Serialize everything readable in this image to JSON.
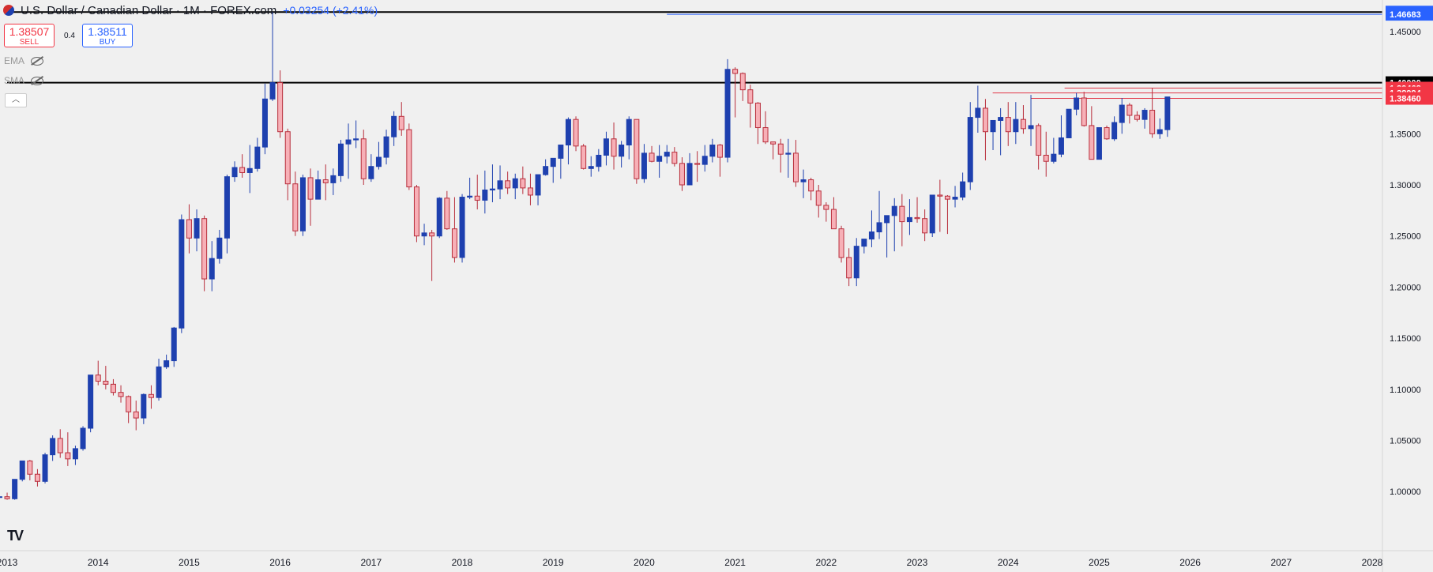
{
  "header": {
    "title": "U.S. Dollar / Canadian Dollar · 1M · FOREX.com",
    "change": "+0.03254 (+2.41%)"
  },
  "trade": {
    "sell_price": "1.38507",
    "sell_label": "SELL",
    "spread": "0.4",
    "buy_price": "1.38511",
    "buy_label": "BUY"
  },
  "indicators": [
    "EMA",
    "SMA"
  ],
  "colors": {
    "bull": "#1e40af",
    "bear_fill": "#f7b0b7",
    "bear_border": "#b82e3c",
    "red_line": "#e23a4a",
    "blue_line": "#3b68d8"
  },
  "chart_data": {
    "type": "candlestick",
    "ylim": [
      0.977,
      1.47
    ],
    "y_ticks": [
      "1.00000",
      "1.05000",
      "1.10000",
      "1.15000",
      "1.20000",
      "1.25000",
      "1.30000",
      "1.35000",
      "1.40000",
      "1.45000",
      "1.47000"
    ],
    "x_ticks": [
      "2013",
      "2014",
      "2015",
      "2016",
      "2017",
      "2018",
      "2019",
      "2020",
      "2021",
      "2022",
      "2023",
      "2024",
      "2025",
      "2026",
      "2027",
      "2028"
    ],
    "x_tick_dates": [
      2013,
      2014,
      2015,
      2016,
      2017,
      2018,
      2019,
      2020,
      2021,
      2022,
      2023,
      2024,
      2025,
      2026,
      2027,
      2028
    ],
    "price_labels": [
      {
        "text": "1.46901",
        "value": 1.46901,
        "color": "#2962ff"
      },
      {
        "text": "1.46683",
        "value": 1.46683,
        "color": "#2962ff"
      },
      {
        "text": "1.40000",
        "value": 1.4,
        "color": "#000000"
      },
      {
        "text": "1.39468",
        "value": 1.39468,
        "color": "#f23645"
      },
      {
        "text": "1.38994",
        "value": 1.38994,
        "color": "#f23645"
      },
      {
        "text": "1.38460",
        "value": 1.3846,
        "color": "#f23645"
      }
    ],
    "h_lines": [
      {
        "value": 1.469,
        "from": 2013.0,
        "color": "#000000",
        "width": 2
      },
      {
        "value": 1.4,
        "from": 2013.0,
        "color": "#000000",
        "width": 2
      },
      {
        "value": 1.46683,
        "from": 2020.25,
        "color": "#2962ff",
        "width": 1
      },
      {
        "value": 1.39468,
        "from": 2024.62,
        "color": "#e23a4a",
        "width": 1
      },
      {
        "value": 1.38994,
        "from": 2023.83,
        "color": "#e23a4a",
        "width": 1
      },
      {
        "value": 1.3846,
        "from": 2024.25,
        "color": "#e23a4a",
        "width": 1
      }
    ],
    "start_date": 2012.917,
    "ohlc": [
      [
        0.995,
        0.998,
        0.983,
        0.995
      ],
      [
        0.995,
        0.999,
        0.992,
        0.993
      ],
      [
        0.993,
        1.012,
        0.992,
        1.012
      ],
      [
        1.012,
        1.03,
        1.01,
        1.03
      ],
      [
        1.03,
        1.031,
        1.011,
        1.017
      ],
      [
        1.017,
        1.022,
        1.005,
        1.01
      ],
      [
        1.01,
        1.038,
        1.008,
        1.036
      ],
      [
        1.036,
        1.055,
        1.03,
        1.052
      ],
      [
        1.052,
        1.061,
        1.033,
        1.038
      ],
      [
        1.038,
        1.058,
        1.025,
        1.032
      ],
      [
        1.032,
        1.045,
        1.026,
        1.042
      ],
      [
        1.042,
        1.064,
        1.04,
        1.062
      ],
      [
        1.062,
        1.114,
        1.058,
        1.114
      ],
      [
        1.114,
        1.128,
        1.104,
        1.108
      ],
      [
        1.108,
        1.123,
        1.1,
        1.105
      ],
      [
        1.105,
        1.11,
        1.094,
        1.097
      ],
      [
        1.097,
        1.104,
        1.087,
        1.093
      ],
      [
        1.093,
        1.094,
        1.067,
        1.078
      ],
      [
        1.078,
        1.089,
        1.06,
        1.072
      ],
      [
        1.072,
        1.096,
        1.066,
        1.095
      ],
      [
        1.095,
        1.104,
        1.081,
        1.092
      ],
      [
        1.092,
        1.13,
        1.089,
        1.122
      ],
      [
        1.122,
        1.134,
        1.12,
        1.128
      ],
      [
        1.128,
        1.161,
        1.122,
        1.16
      ],
      [
        1.16,
        1.271,
        1.155,
        1.266
      ],
      [
        1.266,
        1.281,
        1.233,
        1.248
      ],
      [
        1.248,
        1.276,
        1.235,
        1.267
      ],
      [
        1.267,
        1.27,
        1.196,
        1.208
      ],
      [
        1.208,
        1.245,
        1.196,
        1.228
      ],
      [
        1.228,
        1.256,
        1.223,
        1.248
      ],
      [
        1.248,
        1.31,
        1.233,
        1.308
      ],
      [
        1.308,
        1.323,
        1.303,
        1.317
      ],
      [
        1.317,
        1.33,
        1.307,
        1.312
      ],
      [
        1.312,
        1.339,
        1.292,
        1.316
      ],
      [
        1.316,
        1.346,
        1.313,
        1.337
      ],
      [
        1.337,
        1.399,
        1.33,
        1.384
      ],
      [
        1.384,
        1.469,
        1.382,
        1.4
      ],
      [
        1.4,
        1.412,
        1.346,
        1.352
      ],
      [
        1.352,
        1.355,
        1.285,
        1.301
      ],
      [
        1.301,
        1.313,
        1.25,
        1.255
      ],
      [
        1.255,
        1.31,
        1.25,
        1.307
      ],
      [
        1.307,
        1.316,
        1.26,
        1.286
      ],
      [
        1.286,
        1.314,
        1.288,
        1.305
      ],
      [
        1.305,
        1.32,
        1.285,
        1.302
      ],
      [
        1.302,
        1.316,
        1.29,
        1.309
      ],
      [
        1.309,
        1.344,
        1.303,
        1.34
      ],
      [
        1.34,
        1.36,
        1.306,
        1.344
      ],
      [
        1.344,
        1.363,
        1.336,
        1.345
      ],
      [
        1.345,
        1.354,
        1.3,
        1.306
      ],
      [
        1.306,
        1.33,
        1.303,
        1.318
      ],
      [
        1.318,
        1.342,
        1.315,
        1.327
      ],
      [
        1.327,
        1.354,
        1.32,
        1.347
      ],
      [
        1.347,
        1.372,
        1.338,
        1.367
      ],
      [
        1.367,
        1.381,
        1.348,
        1.354
      ],
      [
        1.354,
        1.36,
        1.295,
        1.298
      ],
      [
        1.298,
        1.3,
        1.244,
        1.25
      ],
      [
        1.25,
        1.262,
        1.241,
        1.253
      ],
      [
        1.253,
        1.256,
        1.206,
        1.25
      ],
      [
        1.25,
        1.288,
        1.248,
        1.287
      ],
      [
        1.287,
        1.294,
        1.256,
        1.257
      ],
      [
        1.257,
        1.288,
        1.224,
        1.229
      ],
      [
        1.229,
        1.291,
        1.224,
        1.288
      ],
      [
        1.288,
        1.307,
        1.286,
        1.289
      ],
      [
        1.289,
        1.31,
        1.276,
        1.285
      ],
      [
        1.285,
        1.314,
        1.272,
        1.295
      ],
      [
        1.295,
        1.32,
        1.283,
        1.296
      ],
      [
        1.296,
        1.319,
        1.286,
        1.304
      ],
      [
        1.304,
        1.313,
        1.291,
        1.297
      ],
      [
        1.297,
        1.311,
        1.286,
        1.306
      ],
      [
        1.306,
        1.318,
        1.291,
        1.297
      ],
      [
        1.297,
        1.311,
        1.28,
        1.29
      ],
      [
        1.29,
        1.306,
        1.28,
        1.31
      ],
      [
        1.31,
        1.325,
        1.309,
        1.318
      ],
      [
        1.318,
        1.326,
        1.302,
        1.326
      ],
      [
        1.326,
        1.339,
        1.306,
        1.339
      ],
      [
        1.339,
        1.366,
        1.32,
        1.364
      ],
      [
        1.364,
        1.367,
        1.333,
        1.338
      ],
      [
        1.338,
        1.34,
        1.315,
        1.316
      ],
      [
        1.316,
        1.328,
        1.308,
        1.318
      ],
      [
        1.318,
        1.335,
        1.313,
        1.329
      ],
      [
        1.329,
        1.352,
        1.319,
        1.345
      ],
      [
        1.345,
        1.361,
        1.315,
        1.328
      ],
      [
        1.328,
        1.343,
        1.317,
        1.339
      ],
      [
        1.339,
        1.367,
        1.325,
        1.364
      ],
      [
        1.364,
        1.364,
        1.301,
        1.306
      ],
      [
        1.306,
        1.34,
        1.302,
        1.331
      ],
      [
        1.331,
        1.338,
        1.322,
        1.323
      ],
      [
        1.323,
        1.339,
        1.307,
        1.328
      ],
      [
        1.328,
        1.339,
        1.321,
        1.332
      ],
      [
        1.332,
        1.337,
        1.318,
        1.321
      ],
      [
        1.321,
        1.327,
        1.294,
        1.3
      ],
      [
        1.3,
        1.331,
        1.3,
        1.321
      ],
      [
        1.321,
        1.333,
        1.303,
        1.32
      ],
      [
        1.32,
        1.339,
        1.313,
        1.328
      ],
      [
        1.328,
        1.345,
        1.322,
        1.339
      ],
      [
        1.339,
        1.34,
        1.308,
        1.327
      ],
      [
        1.327,
        1.423,
        1.322,
        1.413
      ],
      [
        1.413,
        1.415,
        1.366,
        1.409
      ],
      [
        1.409,
        1.41,
        1.382,
        1.393
      ],
      [
        1.393,
        1.398,
        1.356,
        1.38
      ],
      [
        1.38,
        1.381,
        1.34,
        1.356
      ],
      [
        1.356,
        1.372,
        1.34,
        1.342
      ],
      [
        1.342,
        1.342,
        1.325,
        1.34
      ],
      [
        1.34,
        1.345,
        1.312,
        1.33
      ],
      [
        1.33,
        1.345,
        1.307,
        1.331
      ],
      [
        1.331,
        1.344,
        1.298,
        1.303
      ],
      [
        1.303,
        1.315,
        1.287,
        1.305
      ],
      [
        1.305,
        1.307,
        1.285,
        1.294
      ],
      [
        1.294,
        1.3,
        1.268,
        1.28
      ],
      [
        1.28,
        1.283,
        1.264,
        1.276
      ],
      [
        1.276,
        1.288,
        1.257,
        1.257
      ],
      [
        1.257,
        1.26,
        1.224,
        1.229
      ],
      [
        1.229,
        1.238,
        1.201,
        1.209
      ],
      [
        1.209,
        1.248,
        1.201,
        1.24
      ],
      [
        1.24,
        1.247,
        1.233,
        1.247
      ],
      [
        1.247,
        1.275,
        1.239,
        1.254
      ],
      [
        1.254,
        1.294,
        1.247,
        1.263
      ],
      [
        1.263,
        1.267,
        1.229,
        1.27
      ],
      [
        1.27,
        1.287,
        1.235,
        1.279
      ],
      [
        1.279,
        1.291,
        1.24,
        1.264
      ],
      [
        1.264,
        1.286,
        1.251,
        1.268
      ],
      [
        1.268,
        1.288,
        1.263,
        1.267
      ],
      [
        1.267,
        1.276,
        1.245,
        1.253
      ],
      [
        1.253,
        1.29,
        1.249,
        1.29
      ],
      [
        1.29,
        1.305,
        1.254,
        1.289
      ],
      [
        1.289,
        1.29,
        1.252,
        1.286
      ],
      [
        1.286,
        1.299,
        1.278,
        1.288
      ],
      [
        1.288,
        1.312,
        1.285,
        1.303
      ],
      [
        1.303,
        1.381,
        1.295,
        1.366
      ],
      [
        1.366,
        1.397,
        1.351,
        1.375
      ],
      [
        1.375,
        1.384,
        1.324,
        1.352
      ],
      [
        1.352,
        1.362,
        1.334,
        1.363
      ],
      [
        1.363,
        1.375,
        1.329,
        1.366
      ],
      [
        1.366,
        1.381,
        1.338,
        1.352
      ],
      [
        1.352,
        1.381,
        1.34,
        1.364
      ],
      [
        1.364,
        1.378,
        1.35,
        1.355
      ],
      [
        1.355,
        1.388,
        1.338,
        1.358
      ],
      [
        1.358,
        1.36,
        1.315,
        1.329
      ],
      [
        1.329,
        1.352,
        1.308,
        1.323
      ],
      [
        1.323,
        1.346,
        1.321,
        1.33
      ],
      [
        1.33,
        1.368,
        1.327,
        1.346
      ],
      [
        1.346,
        1.37,
        1.346,
        1.374
      ],
      [
        1.374,
        1.39,
        1.368,
        1.385
      ],
      [
        1.385,
        1.391,
        1.357,
        1.358
      ],
      [
        1.358,
        1.377,
        1.325,
        1.325
      ],
      [
        1.325,
        1.356,
        1.329,
        1.356
      ],
      [
        1.356,
        1.358,
        1.344,
        1.345
      ],
      [
        1.345,
        1.367,
        1.343,
        1.361
      ],
      [
        1.361,
        1.385,
        1.35,
        1.378
      ],
      [
        1.378,
        1.38,
        1.36,
        1.368
      ],
      [
        1.368,
        1.372,
        1.362,
        1.364
      ],
      [
        1.364,
        1.375,
        1.355,
        1.373
      ],
      [
        1.373,
        1.395,
        1.346,
        1.35
      ],
      [
        1.35,
        1.365,
        1.345,
        1.354
      ],
      [
        1.354,
        1.386,
        1.347,
        1.386
      ]
    ]
  }
}
